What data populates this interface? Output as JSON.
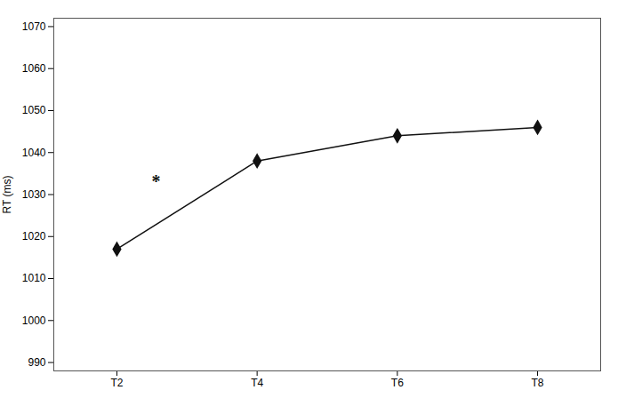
{
  "chart_data": {
    "type": "line",
    "x": [
      0,
      1,
      2,
      3
    ],
    "values": [
      1017,
      1038,
      1044,
      1046
    ],
    "xlim": [
      -0.45,
      3.45
    ],
    "xticks": [
      {
        "value": 0,
        "label": "T2"
      },
      {
        "value": 1,
        "label": "T4"
      },
      {
        "value": 2,
        "label": "T6"
      },
      {
        "value": 3,
        "label": "T8"
      }
    ],
    "ylim": [
      988,
      1072
    ],
    "yticks": [
      990,
      1000,
      1010,
      1020,
      1030,
      1040,
      1050,
      1060,
      1070
    ],
    "y_label": "RT (ms)",
    "color": "#111111",
    "marker": "diamond",
    "grid": false,
    "annotations": [
      {
        "text": "*",
        "x": 0.28,
        "y": 1033
      }
    ]
  }
}
